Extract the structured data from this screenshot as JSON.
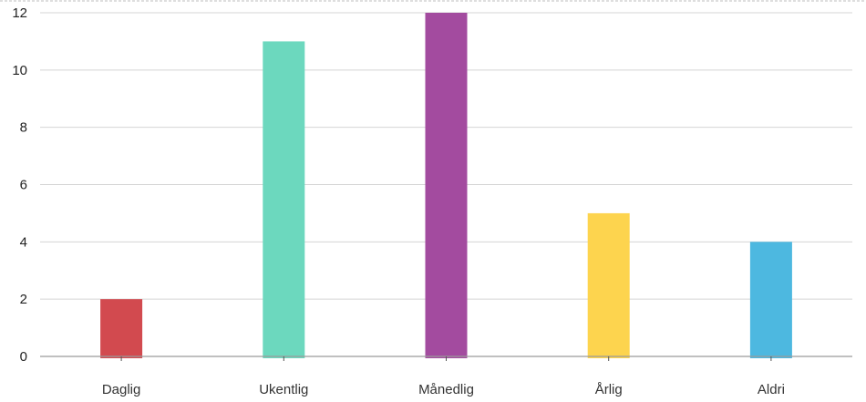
{
  "chart_data": {
    "type": "bar",
    "categories": [
      "Daglig",
      "Ukentlig",
      "Månedlig",
      "Årlig",
      "Aldri"
    ],
    "values": [
      2,
      11,
      12,
      5,
      4
    ],
    "colors": [
      "#d24a4f",
      "#6cd8be",
      "#a34b9f",
      "#fdd44e",
      "#4db8e0"
    ],
    "title": "",
    "xlabel": "",
    "ylabel": "",
    "ylim": [
      0,
      12
    ],
    "yticks": [
      0,
      2,
      4,
      6,
      8,
      10,
      12
    ],
    "grid": true,
    "legend": "none"
  }
}
